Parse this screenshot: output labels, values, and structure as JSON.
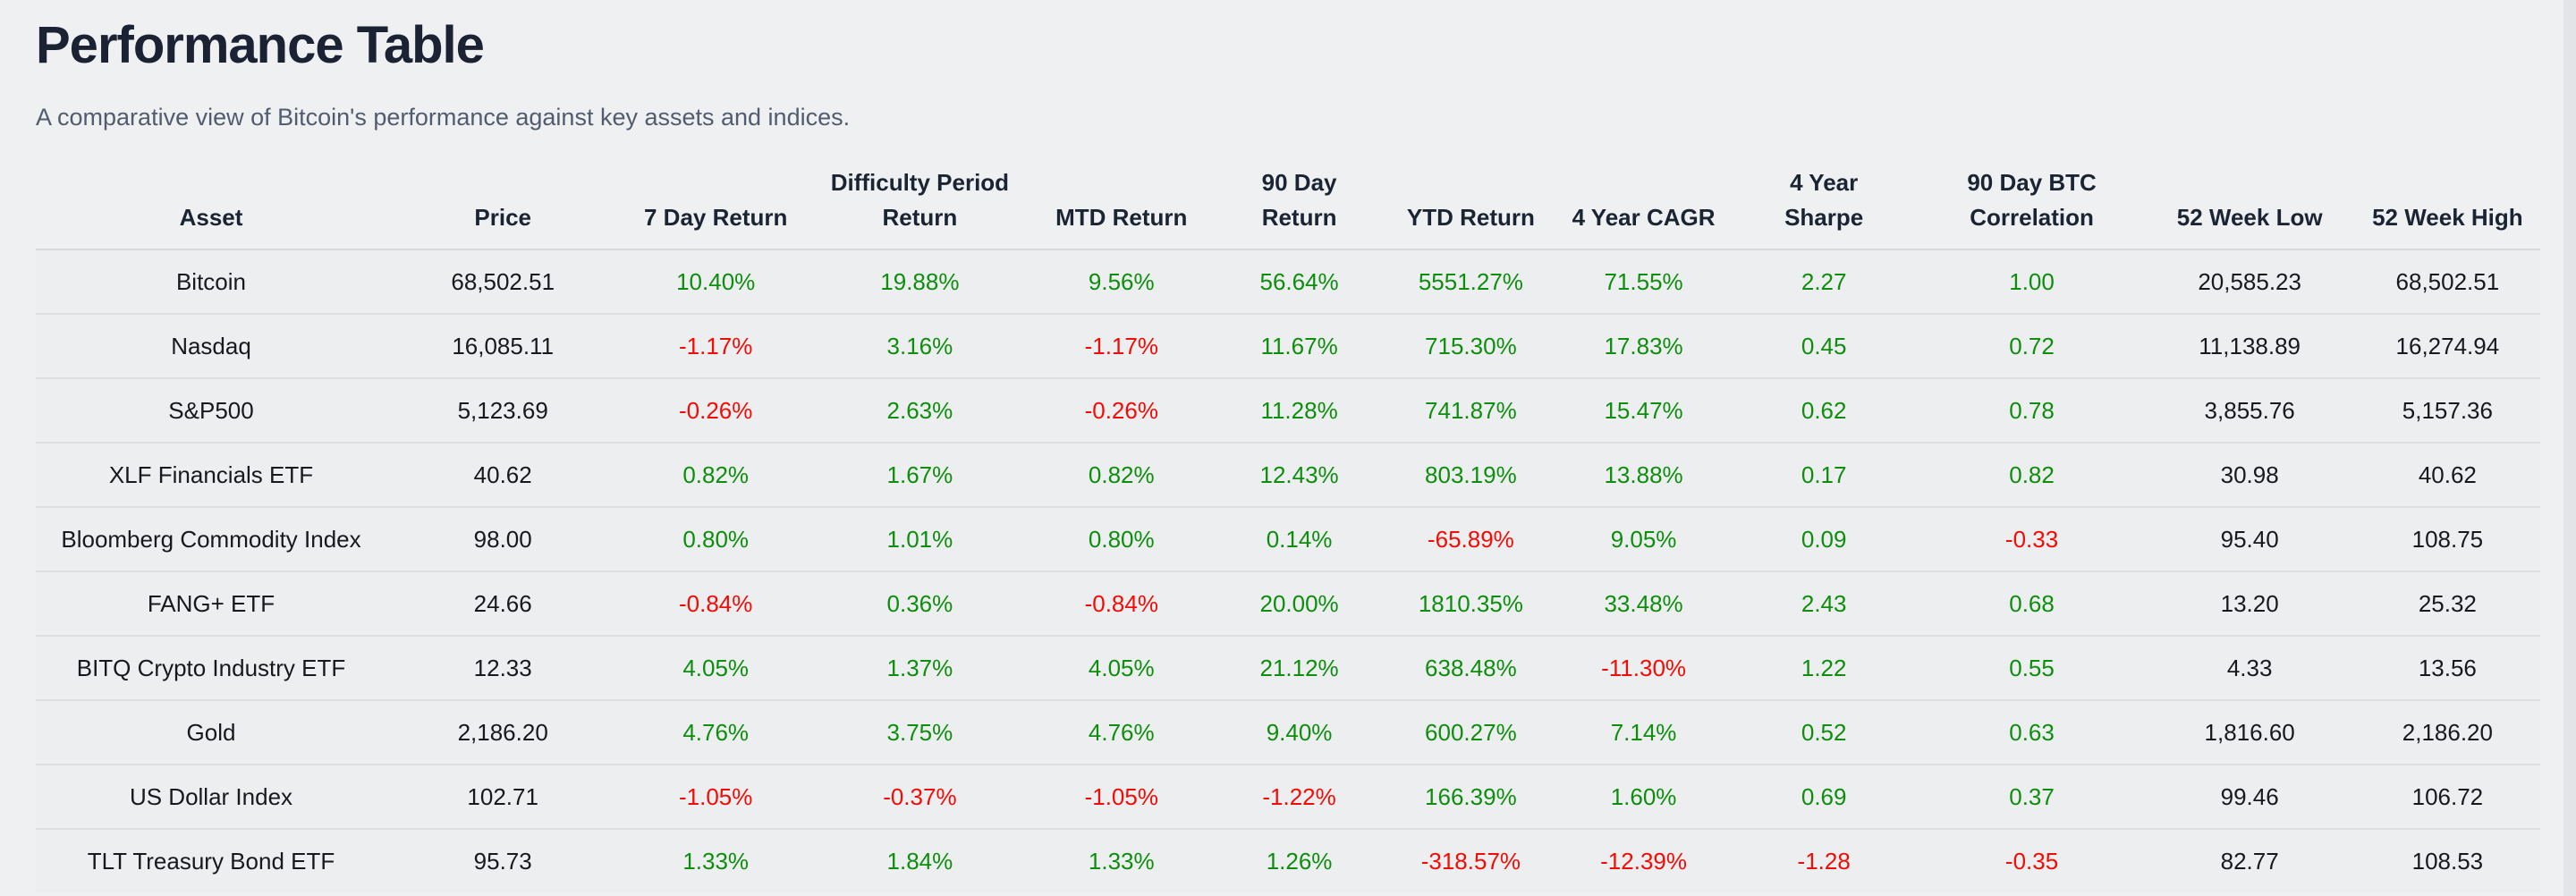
{
  "page": {
    "title": "Performance Table",
    "subtitle": "A comparative view of Bitcoin's performance against key assets and indices."
  },
  "colors": {
    "positive": "#0d8e0d",
    "negative": "#f30b05"
  },
  "table": {
    "columns": [
      {
        "key": "asset",
        "label": "Asset",
        "lines": [
          "Asset"
        ],
        "sign_colored": false
      },
      {
        "key": "price",
        "label": "Price",
        "lines": [
          "Price"
        ],
        "sign_colored": false
      },
      {
        "key": "d7",
        "label": "7 Day Return",
        "lines": [
          "7 Day Return"
        ],
        "sign_colored": true
      },
      {
        "key": "diff",
        "label": "Difficulty Period Return",
        "lines": [
          "Difficulty Period",
          "Return"
        ],
        "sign_colored": true
      },
      {
        "key": "mtd",
        "label": "MTD Return",
        "lines": [
          "MTD Return"
        ],
        "sign_colored": true
      },
      {
        "key": "d90",
        "label": "90 Day Return",
        "lines": [
          "90 Day",
          "Return"
        ],
        "sign_colored": true
      },
      {
        "key": "ytd",
        "label": "YTD Return",
        "lines": [
          "YTD Return"
        ],
        "sign_colored": true
      },
      {
        "key": "cagr",
        "label": "4 Year CAGR",
        "lines": [
          "4 Year CAGR"
        ],
        "sign_colored": true
      },
      {
        "key": "sharpe",
        "label": "4 Year Sharpe",
        "lines": [
          "4 Year",
          "Sharpe"
        ],
        "sign_colored": true
      },
      {
        "key": "corr",
        "label": "90 Day BTC Correlation",
        "lines": [
          "90 Day BTC",
          "Correlation"
        ],
        "sign_colored": true
      },
      {
        "key": "low",
        "label": "52 Week Low",
        "lines": [
          "52 Week Low"
        ],
        "sign_colored": false
      },
      {
        "key": "high",
        "label": "52 Week High",
        "lines": [
          "52 Week High"
        ],
        "sign_colored": false
      }
    ],
    "rows": [
      {
        "asset": "Bitcoin",
        "price": "68,502.51",
        "d7": "10.40%",
        "diff": "19.88%",
        "mtd": "9.56%",
        "d90": "56.64%",
        "ytd": "5551.27%",
        "cagr": "71.55%",
        "sharpe": "2.27",
        "corr": "1.00",
        "low": "20,585.23",
        "high": "68,502.51"
      },
      {
        "asset": "Nasdaq",
        "price": "16,085.11",
        "d7": "-1.17%",
        "diff": "3.16%",
        "mtd": "-1.17%",
        "d90": "11.67%",
        "ytd": "715.30%",
        "cagr": "17.83%",
        "sharpe": "0.45",
        "corr": "0.72",
        "low": "11,138.89",
        "high": "16,274.94"
      },
      {
        "asset": "S&P500",
        "price": "5,123.69",
        "d7": "-0.26%",
        "diff": "2.63%",
        "mtd": "-0.26%",
        "d90": "11.28%",
        "ytd": "741.87%",
        "cagr": "15.47%",
        "sharpe": "0.62",
        "corr": "0.78",
        "low": "3,855.76",
        "high": "5,157.36"
      },
      {
        "asset": "XLF Financials ETF",
        "price": "40.62",
        "d7": "0.82%",
        "diff": "1.67%",
        "mtd": "0.82%",
        "d90": "12.43%",
        "ytd": "803.19%",
        "cagr": "13.88%",
        "sharpe": "0.17",
        "corr": "0.82",
        "low": "30.98",
        "high": "40.62"
      },
      {
        "asset": "Bloomberg Commodity Index",
        "price": "98.00",
        "d7": "0.80%",
        "diff": "1.01%",
        "mtd": "0.80%",
        "d90": "0.14%",
        "ytd": "-65.89%",
        "cagr": "9.05%",
        "sharpe": "0.09",
        "corr": "-0.33",
        "low": "95.40",
        "high": "108.75"
      },
      {
        "asset": "FANG+ ETF",
        "price": "24.66",
        "d7": "-0.84%",
        "diff": "0.36%",
        "mtd": "-0.84%",
        "d90": "20.00%",
        "ytd": "1810.35%",
        "cagr": "33.48%",
        "sharpe": "2.43",
        "corr": "0.68",
        "low": "13.20",
        "high": "25.32"
      },
      {
        "asset": "BITQ Crypto Industry ETF",
        "price": "12.33",
        "d7": "4.05%",
        "diff": "1.37%",
        "mtd": "4.05%",
        "d90": "21.12%",
        "ytd": "638.48%",
        "cagr": "-11.30%",
        "sharpe": "1.22",
        "corr": "0.55",
        "low": "4.33",
        "high": "13.56"
      },
      {
        "asset": "Gold",
        "price": "2,186.20",
        "d7": "4.76%",
        "diff": "3.75%",
        "mtd": "4.76%",
        "d90": "9.40%",
        "ytd": "600.27%",
        "cagr": "7.14%",
        "sharpe": "0.52",
        "corr": "0.63",
        "low": "1,816.60",
        "high": "2,186.20"
      },
      {
        "asset": "US Dollar Index",
        "price": "102.71",
        "d7": "-1.05%",
        "diff": "-0.37%",
        "mtd": "-1.05%",
        "d90": "-1.22%",
        "ytd": "166.39%",
        "cagr": "1.60%",
        "sharpe": "0.69",
        "corr": "0.37",
        "low": "99.46",
        "high": "106.72"
      },
      {
        "asset": "TLT Treasury Bond ETF",
        "price": "95.73",
        "d7": "1.33%",
        "diff": "1.84%",
        "mtd": "1.33%",
        "d90": "1.26%",
        "ytd": "-318.57%",
        "cagr": "-12.39%",
        "sharpe": "-1.28",
        "corr": "-0.35",
        "low": "82.77",
        "high": "108.53"
      }
    ]
  }
}
